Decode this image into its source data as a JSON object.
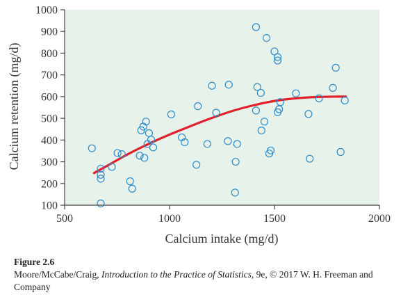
{
  "chart_data": {
    "type": "scatter",
    "title": "",
    "xlabel": "Calcium intake (mg/d)",
    "ylabel": "Calcium retention (mg/d)",
    "xlim": [
      500,
      2000
    ],
    "ylim": [
      100,
      1000
    ],
    "xticks": [
      500,
      1000,
      1500,
      2000
    ],
    "yticks": [
      100,
      200,
      300,
      400,
      500,
      600,
      700,
      800,
      900,
      1000
    ],
    "grid": false,
    "colors": {
      "background": "#e6f2ea",
      "points": "#2e8bc9",
      "curve": "#e0202a",
      "axis": "#444444"
    },
    "points": [
      {
        "x": 630,
        "y": 362
      },
      {
        "x": 672,
        "y": 268
      },
      {
        "x": 672,
        "y": 240
      },
      {
        "x": 672,
        "y": 222
      },
      {
        "x": 672,
        "y": 108
      },
      {
        "x": 725,
        "y": 276
      },
      {
        "x": 752,
        "y": 340
      },
      {
        "x": 772,
        "y": 335
      },
      {
        "x": 812,
        "y": 210
      },
      {
        "x": 822,
        "y": 176
      },
      {
        "x": 858,
        "y": 328
      },
      {
        "x": 865,
        "y": 445
      },
      {
        "x": 875,
        "y": 462
      },
      {
        "x": 880,
        "y": 318
      },
      {
        "x": 888,
        "y": 485
      },
      {
        "x": 895,
        "y": 382
      },
      {
        "x": 902,
        "y": 432
      },
      {
        "x": 912,
        "y": 402
      },
      {
        "x": 922,
        "y": 366
      },
      {
        "x": 1008,
        "y": 518
      },
      {
        "x": 1058,
        "y": 412
      },
      {
        "x": 1072,
        "y": 390
      },
      {
        "x": 1128,
        "y": 286
      },
      {
        "x": 1135,
        "y": 556
      },
      {
        "x": 1180,
        "y": 382
      },
      {
        "x": 1202,
        "y": 650
      },
      {
        "x": 1222,
        "y": 526
      },
      {
        "x": 1278,
        "y": 395
      },
      {
        "x": 1282,
        "y": 655
      },
      {
        "x": 1315,
        "y": 300
      },
      {
        "x": 1322,
        "y": 382
      },
      {
        "x": 1312,
        "y": 158
      },
      {
        "x": 1412,
        "y": 920
      },
      {
        "x": 1412,
        "y": 536
      },
      {
        "x": 1418,
        "y": 644
      },
      {
        "x": 1435,
        "y": 617
      },
      {
        "x": 1438,
        "y": 444
      },
      {
        "x": 1452,
        "y": 485
      },
      {
        "x": 1462,
        "y": 870
      },
      {
        "x": 1475,
        "y": 338
      },
      {
        "x": 1482,
        "y": 352
      },
      {
        "x": 1500,
        "y": 808
      },
      {
        "x": 1515,
        "y": 782
      },
      {
        "x": 1515,
        "y": 766
      },
      {
        "x": 1515,
        "y": 528
      },
      {
        "x": 1522,
        "y": 542
      },
      {
        "x": 1528,
        "y": 575
      },
      {
        "x": 1602,
        "y": 615
      },
      {
        "x": 1662,
        "y": 520
      },
      {
        "x": 1668,
        "y": 314
      },
      {
        "x": 1712,
        "y": 592
      },
      {
        "x": 1778,
        "y": 640
      },
      {
        "x": 1792,
        "y": 733
      },
      {
        "x": 1815,
        "y": 345
      },
      {
        "x": 1835,
        "y": 582
      }
    ],
    "trend": {
      "x": [
        640,
        700,
        800,
        900,
        1000,
        1100,
        1200,
        1300,
        1400,
        1500,
        1600,
        1700,
        1800,
        1840
      ],
      "y": [
        248,
        280,
        334,
        382,
        425,
        464,
        501,
        534,
        560,
        580,
        592,
        598,
        600,
        600
      ]
    }
  },
  "caption": {
    "figure_label": "Figure 2.6",
    "credit_prefix": "Moore/McCabe/Craig, ",
    "credit_title": "Introduction to the Practice of Statistics",
    "credit_suffix": ", 9e, © 2017 W. H. Freeman and Company"
  }
}
